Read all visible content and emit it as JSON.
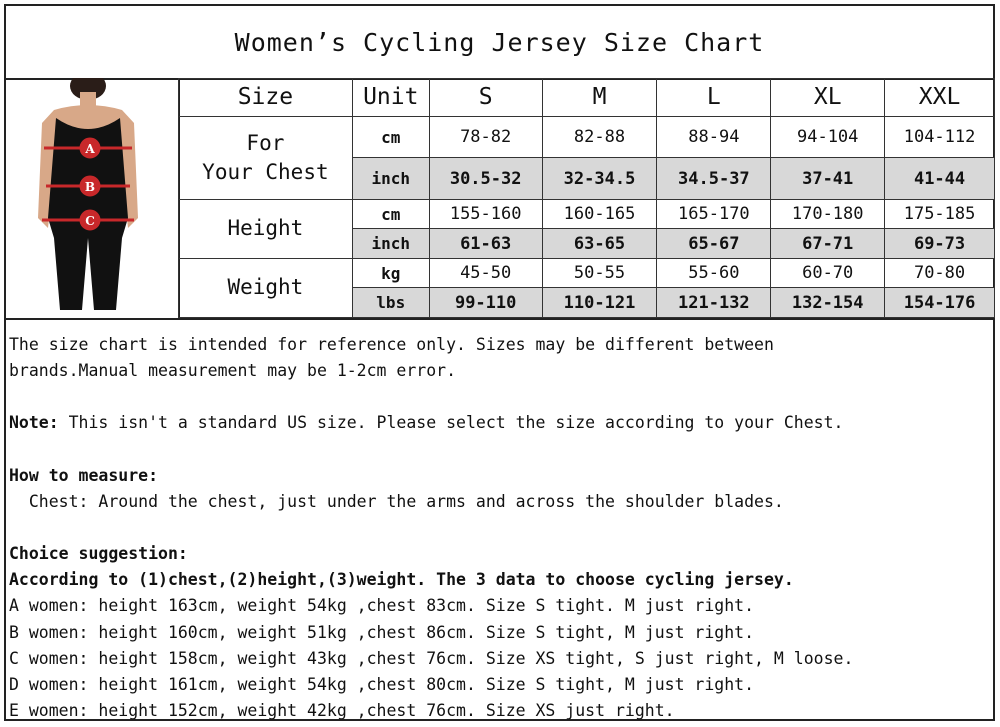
{
  "title": "Women’s Cycling Jersey Size Chart",
  "table": {
    "header": {
      "size": "Size",
      "unit": "Unit",
      "sizes": [
        "S",
        "M",
        "L",
        "XL",
        "XXL"
      ]
    },
    "rows": [
      {
        "label": "For\nYour Chest",
        "units": [
          {
            "unit": "cm",
            "values": [
              "78-82",
              "82-88",
              "88-94",
              "94-104",
              "104-112"
            ]
          },
          {
            "unit": "inch",
            "values": [
              "30.5-32",
              "32-34.5",
              "34.5-37",
              "37-41",
              "41-44"
            ]
          }
        ]
      },
      {
        "label": "Height",
        "units": [
          {
            "unit": "cm",
            "values": [
              "155-160",
              "160-165",
              "165-170",
              "170-180",
              "175-185"
            ]
          },
          {
            "unit": "inch",
            "values": [
              "61-63",
              "63-65",
              "65-67",
              "67-71",
              "69-73"
            ]
          }
        ]
      },
      {
        "label": "Weight",
        "units": [
          {
            "unit": "kg",
            "values": [
              "45-50",
              "50-55",
              "55-60",
              "60-70",
              "70-80"
            ]
          },
          {
            "unit": "lbs",
            "values": [
              "99-110",
              "110-121",
              "121-132",
              "132-154",
              "154-176"
            ]
          }
        ]
      }
    ]
  },
  "figure": {
    "markers": [
      "A",
      "B",
      "C"
    ]
  },
  "notes": {
    "intro1": "The size chart is intended for reference only. Sizes may be different between",
    "intro2": "brands.Manual measurement may be 1-2cm error.",
    "note_label": "Note:",
    "note_text": " This isn't a standard US size. Please select the size according to your Chest.",
    "how_label": "How to measure:",
    "how_text": "  Chest: Around the chest, just under the arms and across the shoulder blades.",
    "choice_label": "Choice suggestion:",
    "choice_rule": "According to (1)chest,(2)height,(3)weight. The 3 data to choose cycling jersey.",
    "examples": [
      "A women: height 163cm, weight 54kg ,chest 83cm. Size S tight. M just right.",
      "B women: height 160cm, weight 51kg ,chest 86cm. Size S tight, M just right.",
      "C women: height 158cm, weight 43kg ,chest 76cm. Size XS tight, S just right, M loose.",
      "D women: height 161cm, weight 54kg ,chest 80cm. Size S tight, M just right.",
      "E women: height 152cm, weight 42kg ,chest 76cm. Size XS just right."
    ]
  }
}
